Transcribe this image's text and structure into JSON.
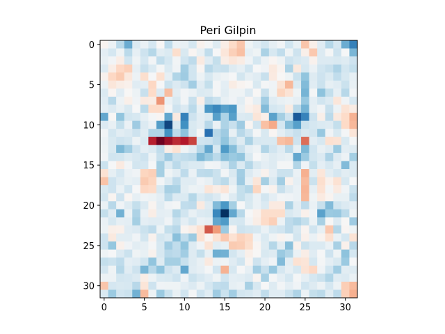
{
  "chart_data": {
    "type": "heatmap",
    "title": "Peri Gilpin",
    "colormap": "RdBu_r",
    "colors": {
      "low": "#053061",
      "mid": "#f7f7f7",
      "high": "#67001f"
    },
    "vmin": -1,
    "vmax": 1,
    "xlim": [
      -0.5,
      31.5
    ],
    "ylim": [
      31.5,
      -0.5
    ],
    "xticks": [
      0,
      5,
      10,
      15,
      20,
      25,
      30
    ],
    "yticks": [
      0,
      5,
      10,
      15,
      20,
      25,
      30
    ],
    "grid": false,
    "values": [
      [
        0.03,
        -0.06,
        -0.27,
        -0.5,
        -0.14,
        -0.07,
        -0.18,
        0.01,
        -0.26,
        -0.07,
        -0.08,
        -0.18,
        0.04,
        -0.02,
        -0.13,
        0.07,
        0.19,
        0.28,
        -0.05,
        -0.12,
        -0.19,
        -0.09,
        -0.03,
        -0.2,
        -0.08,
        0.28,
        0.06,
        -0.12,
        -0.29,
        -0.18,
        -0.5,
        -0.68
      ],
      [
        -0.1,
        -0.18,
        -0.05,
        -0.27,
        -0.09,
        -0.21,
        -0.29,
        -0.11,
        -0.15,
        0.17,
        -0.16,
        0.02,
        -0.08,
        -0.25,
        -0.01,
        0.12,
        0.24,
        0.3,
        -0.09,
        -0.05,
        -0.32,
        -0.17,
        -0.25,
        -0.05,
        -0.21,
        0.06,
        0.27,
        -0.14,
        -0.02,
        -0.21,
        -0.01,
        -0.46
      ],
      [
        -0.08,
        -0.03,
        0.07,
        -0.2,
        -0.05,
        -0.18,
        -0.03,
        -0.25,
        -0.18,
        -0.03,
        -0.2,
        -0.26,
        0.09,
        -0.12,
        -0.24,
        0.07,
        0.12,
        0.08,
        -0.04,
        -0.18,
        -0.06,
        0.02,
        -0.05,
        -0.21,
        -0.17,
        -0.14,
        0.04,
        -0.14,
        -0.14,
        -0.16,
        -0.13,
        -0.21
      ],
      [
        -0.14,
        0.07,
        0.21,
        0.24,
        -0.09,
        -0.23,
        -0.15,
        -0.02,
        -0.15,
        -0.04,
        -0.35,
        -0.2,
        0.02,
        -0.28,
        -0.22,
        -0.23,
        -0.13,
        -0.09,
        -0.2,
        -0.01,
        -0.04,
        0.1,
        0.03,
        -0.32,
        0.1,
        -0.17,
        -0.07,
        -0.2,
        -0.23,
        -0.31,
        -0.19,
        -0.24
      ],
      [
        0.04,
        0.21,
        0.26,
        0.11,
        -0.06,
        0.17,
        -0.01,
        0.16,
        -0.09,
        -0.3,
        -0.36,
        -0.2,
        -0.06,
        -0.17,
        -0.08,
        -0.05,
        -0.01,
        -0.19,
        -0.09,
        -0.12,
        -0.23,
        0.09,
        0.01,
        -0.05,
        -0.22,
        -0.4,
        -0.13,
        -0.21,
        -0.15,
        -0.25,
        -0.17,
        -0.09
      ],
      [
        -0.06,
        0.12,
        0.07,
        0.05,
        -0.12,
        -0.1,
        0.21,
        -0.01,
        -0.22,
        -0.14,
        -0.21,
        -0.35,
        -0.12,
        -0.24,
        -0.02,
        -0.1,
        0.08,
        0.03,
        0.01,
        -0.16,
        -0.02,
        -0.04,
        0.14,
        0.33,
        -0.15,
        -0.44,
        -0.12,
        -0.22,
        -0.09,
        -0.12,
        -0.22,
        -0.08
      ],
      [
        -0.15,
        0.02,
        -0.12,
        0.01,
        -0.06,
        -0.23,
        0.19,
        -0.14,
        0.31,
        -0.11,
        -0.03,
        -0.07,
        -0.15,
        -0.13,
        -0.02,
        -0.11,
        -0.05,
        -0.05,
        -0.14,
        0.01,
        -0.23,
        -0.05,
        0.22,
        0.14,
        -0.05,
        -0.47,
        -0.02,
        -0.41,
        -0.24,
        -0.09,
        -0.28,
        -0.03
      ],
      [
        -0.12,
        -0.28,
        -0.06,
        0.06,
        -0.04,
        0.09,
        0.08,
        0.45,
        -0.07,
        -0.16,
        -0.03,
        -0.23,
        0.06,
        -0.26,
        -0.22,
        -0.08,
        -0.04,
        -0.11,
        0.02,
        -0.09,
        -0.35,
        -0.12,
        -0.08,
        -0.06,
        -0.09,
        -0.38,
        -0.1,
        -0.2,
        -0.14,
        0.12,
        -0.04,
        -0.17
      ],
      [
        -0.1,
        -0.14,
        -0.08,
        -0.16,
        -0.01,
        -0.27,
        0.19,
        0.19,
        -0.02,
        -0.21,
        -0.14,
        -0.27,
        -0.08,
        -0.58,
        -0.65,
        -0.55,
        -0.58,
        -0.08,
        0.05,
        0.09,
        -0.44,
        -0.18,
        -0.15,
        0.08,
        -0.28,
        -0.47,
        -0.09,
        -0.03,
        -0.23,
        -0.06,
        0.14,
        0.08
      ],
      [
        -0.52,
        0.01,
        -0.4,
        -0.19,
        -0.17,
        -0.09,
        -0.02,
        0.02,
        -0.52,
        0.09,
        -0.68,
        -0.21,
        -0.11,
        -0.16,
        -0.55,
        -0.31,
        -0.55,
        -0.14,
        -0.16,
        0.13,
        0.06,
        -0.54,
        -0.34,
        -0.21,
        -0.85,
        -0.67,
        -0.21,
        0.06,
        -0.27,
        0.1,
        0.19,
        0.35
      ],
      [
        -0.14,
        -0.08,
        -0.24,
        -0.07,
        -0.36,
        -0.14,
        -0.07,
        -0.56,
        -0.92,
        -0.17,
        -0.61,
        -0.16,
        -0.11,
        -0.28,
        -0.07,
        -0.31,
        -0.23,
        -0.36,
        0.02,
        -0.2,
        0.3,
        0.38,
        -0.18,
        -0.43,
        -0.55,
        -0.22,
        -0.18,
        -0.15,
        -0.13,
        -0.24,
        0.2,
        0.33
      ],
      [
        -0.03,
        -0.19,
        -0.11,
        -0.14,
        -0.21,
        -0.12,
        -0.3,
        -0.3,
        -0.6,
        -0.26,
        -0.41,
        -0.17,
        -0.02,
        -0.75,
        -0.28,
        -0.36,
        -0.08,
        -0.28,
        -0.2,
        -0.02,
        -0.16,
        0.02,
        -0.1,
        -0.18,
        -0.23,
        -0.16,
        -0.19,
        -0.38,
        -0.04,
        -0.16,
        -0.02,
        0.13
      ],
      [
        -0.06,
        -0.16,
        -0.21,
        -0.19,
        -0.06,
        -0.15,
        0.78,
        0.98,
        0.86,
        0.75,
        0.8,
        0.68,
        -0.2,
        -0.21,
        -0.26,
        -0.4,
        -0.24,
        -0.13,
        -0.32,
        -0.17,
        -0.16,
        -0.16,
        0.3,
        0.33,
        -0.21,
        0.56,
        -0.11,
        -0.17,
        0.16,
        0.14,
        -0.16,
        -0.02
      ],
      [
        -0.05,
        -0.16,
        -0.45,
        -0.35,
        -0.21,
        -0.1,
        -0.14,
        -0.25,
        0.07,
        0.15,
        -0.05,
        -0.12,
        -0.29,
        -0.52,
        -0.17,
        -0.57,
        -0.43,
        -0.23,
        -0.1,
        -0.06,
        -0.3,
        -0.2,
        -0.12,
        -0.27,
        -0.09,
        -0.45,
        -0.2,
        -0.08,
        -0.13,
        -0.37,
        -0.11,
        -0.13
      ],
      [
        -0.03,
        -0.2,
        -0.19,
        -0.13,
        -0.17,
        -0.21,
        -0.06,
        -0.23,
        -0.36,
        -0.23,
        -0.25,
        -0.27,
        -0.45,
        -0.37,
        -0.27,
        -0.42,
        -0.37,
        -0.4,
        -0.16,
        -0.01,
        -0.08,
        -0.13,
        -0.1,
        -0.08,
        -0.52,
        -0.37,
        -0.19,
        -0.14,
        -0.31,
        -0.13,
        -0.06,
        -0.34
      ],
      [
        -0.22,
        -0.01,
        0.09,
        -0.03,
        -0.19,
        -0.18,
        -0.01,
        -0.34,
        -0.15,
        -0.27,
        -0.19,
        -0.15,
        -0.14,
        -0.03,
        -0.04,
        -0.15,
        -0.31,
        -0.15,
        -0.29,
        -0.16,
        -0.1,
        -0.13,
        -0.02,
        -0.02,
        -0.3,
        -0.04,
        -0.24,
        -0.1,
        -0.17,
        -0.09,
        -0.44,
        -0.15
      ],
      [
        0.15,
        -0.09,
        -0.18,
        -0.07,
        -0.04,
        0.22,
        0.24,
        -0.34,
        -0.05,
        -0.11,
        -0.26,
        -0.07,
        -0.26,
        -0.27,
        -0.22,
        -0.03,
        -0.16,
        -0.35,
        -0.14,
        -0.07,
        0.04,
        -0.1,
        -0.22,
        -0.22,
        -0.07,
        0.36,
        -0.11,
        0.12,
        -0.11,
        -0.18,
        -0.11,
        -0.14
      ],
      [
        0.29,
        -0.21,
        -0.13,
        -0.08,
        -0.1,
        0.26,
        0.22,
        -0.03,
        -0.13,
        -0.26,
        -0.12,
        -0.12,
        -0.04,
        -0.08,
        -0.22,
        -0.27,
        -0.11,
        -0.36,
        -0.09,
        0.13,
        -0.34,
        -0.14,
        -0.35,
        0.04,
        -0.09,
        0.32,
        -0.22,
        0.17,
        0.05,
        0.15,
        -0.17,
        -0.01
      ],
      [
        -0.16,
        -0.21,
        -0.07,
        -0.2,
        -0.01,
        0.21,
        0.19,
        -0.16,
        -0.33,
        -0.32,
        -0.11,
        -0.06,
        -0.07,
        0.13,
        0.07,
        0.13,
        -0.05,
        -0.24,
        -0.29,
        0.22,
        -0.02,
        0.04,
        -0.23,
        -0.13,
        -0.07,
        0.34,
        -0.09,
        0.15,
        -0.03,
        0.09,
        -0.04,
        -0.22
      ],
      [
        -0.19,
        0.03,
        -0.21,
        0.02,
        -0.09,
        -0.04,
        -0.06,
        -0.1,
        -0.27,
        -0.14,
        -0.15,
        -0.29,
        -0.15,
        -0.2,
        -0.14,
        -0.03,
        -0.13,
        -0.24,
        -0.17,
        -0.07,
        -0.19,
        -0.1,
        -0.03,
        -0.04,
        -0.07,
        0.33,
        -0.05,
        0.09,
        0.03,
        -0.08,
        -0.08,
        -0.26
      ],
      [
        -0.07,
        -0.28,
        -0.04,
        -0.13,
        -0.24,
        -0.14,
        0.03,
        -0.12,
        -0.04,
        -0.02,
        -0.25,
        -0.26,
        0.09,
        -0.13,
        -0.44,
        -0.58,
        -0.34,
        -0.01,
        -0.16,
        -0.07,
        -0.15,
        0.09,
        0.09,
        -0.32,
        -0.11,
        -0.26,
        -0.07,
        -0.23,
        -0.44,
        -0.2,
        -0.14,
        -0.1
      ],
      [
        -0.24,
        -0.12,
        -0.48,
        -0.06,
        -0.31,
        -0.07,
        0.07,
        -0.1,
        -0.09,
        -0.29,
        -0.2,
        -0.08,
        -0.14,
        -0.16,
        -0.65,
        -1.0,
        -0.52,
        -0.28,
        -0.01,
        0.05,
        0.18,
        0.18,
        0.18,
        -0.16,
        -0.11,
        0.05,
        -0.04,
        -0.54,
        -0.37,
        -0.38,
        -0.27,
        -0.05
      ],
      [
        -0.07,
        -0.17,
        -0.09,
        -0.1,
        -0.34,
        -0.1,
        -0.12,
        -0.12,
        -0.04,
        -0.22,
        -0.1,
        -0.19,
        -0.07,
        -0.09,
        -0.52,
        -0.57,
        -0.17,
        -0.18,
        -0.04,
        0.07,
        0.19,
        0.24,
        -0.06,
        -0.26,
        -0.3,
        -0.24,
        -0.06,
        -0.33,
        0.01,
        -0.14,
        0.01,
        -0.36
      ],
      [
        -0.06,
        0.06,
        0.05,
        -0.12,
        -0.14,
        -0.22,
        -0.26,
        -0.06,
        -0.24,
        -0.28,
        0.03,
        0.07,
        0.16,
        0.62,
        0.43,
        -0.37,
        0.02,
        -0.21,
        -0.19,
        -0.17,
        -0.07,
        -0.17,
        -0.2,
        -0.26,
        -0.17,
        0.03,
        -0.2,
        -0.08,
        0.27,
        -0.29,
        0.02,
        -0.05
      ],
      [
        -0.21,
        0.1,
        -0.11,
        -0.11,
        -0.04,
        -0.19,
        0.04,
        -0.19,
        -0.15,
        -0.42,
        -0.25,
        -0.37,
        0.16,
        0.02,
        0.15,
        0.27,
        0.15,
        0.23,
        0.2,
        -0.04,
        -0.15,
        -0.05,
        0.03,
        -0.02,
        -0.19,
        0.05,
        -0.07,
        0.03,
        0.16,
        -0.07,
        -0.18,
        0.14
      ],
      [
        -0.21,
        -0.39,
        0.05,
        -0.04,
        -0.11,
        -0.09,
        -0.02,
        -0.17,
        -0.35,
        -0.25,
        -0.4,
        -0.13,
        -0.04,
        0.14,
        -0.11,
        -0.08,
        0.26,
        0.25,
        0.18,
        0.02,
        -0.13,
        -0.29,
        -0.11,
        -0.42,
        0.04,
        -0.22,
        -0.15,
        -0.15,
        -0.07,
        -0.33,
        0.05,
        -0.28
      ],
      [
        -0.05,
        -0.01,
        -0.14,
        -0.22,
        -0.05,
        -0.08,
        0.04,
        -0.17,
        -0.28,
        -0.26,
        -0.35,
        -0.13,
        -0.24,
        -0.08,
        -0.49,
        -0.48,
        -0.19,
        -0.1,
        0.06,
        0.01,
        -0.16,
        -0.13,
        -0.37,
        -0.3,
        -0.07,
        0.07,
        -0.12,
        -0.01,
        -0.21,
        -0.05,
        -0.41,
        -0.18
      ],
      [
        -0.24,
        -0.22,
        -0.26,
        -0.1,
        -0.12,
        -0.2,
        -0.4,
        -0.13,
        -0.34,
        -0.34,
        -0.23,
        -0.13,
        -0.08,
        0.1,
        -0.06,
        -0.05,
        -0.12,
        -0.2,
        0.03,
        -0.21,
        -0.1,
        -0.04,
        -0.44,
        -0.11,
        0.15,
        0.13,
        -0.18,
        -0.02,
        -0.1,
        -0.16,
        -0.37,
        -0.01
      ],
      [
        -0.19,
        -0.05,
        -0.29,
        -0.12,
        -0.21,
        -0.46,
        -0.28,
        -0.41,
        -0.21,
        -0.14,
        -0.52,
        -0.12,
        -0.09,
        -0.02,
        -0.2,
        0.35,
        -0.17,
        -0.01,
        -0.09,
        -0.35,
        -0.23,
        -0.38,
        -0.18,
        -0.09,
        -0.17,
        0.14,
        0.21,
        -0.04,
        -0.2,
        -0.35,
        -0.11,
        -0.13
      ],
      [
        -0.06,
        -0.06,
        -0.19,
        -0.18,
        -0.14,
        0.07,
        -0.06,
        -0.15,
        -0.16,
        -0.21,
        -0.04,
        -0.22,
        -0.17,
        -0.12,
        -0.05,
        -0.2,
        -0.1,
        -0.11,
        -0.14,
        0.03,
        -0.33,
        -0.02,
        -0.1,
        -0.18,
        -0.02,
        -0.09,
        -0.18,
        -0.22,
        -0.3,
        -0.12,
        -0.14,
        -0.07
      ],
      [
        0.28,
        -0.18,
        -0.16,
        -0.17,
        -0.28,
        0.13,
        -0.21,
        -0.04,
        -0.05,
        -0.05,
        -0.1,
        -0.14,
        -0.06,
        -0.18,
        -0.25,
        -0.26,
        -0.09,
        -0.07,
        -0.33,
        -0.17,
        -0.01,
        -0.13,
        -0.03,
        -0.1,
        -0.04,
        -0.2,
        -0.13,
        -0.06,
        -0.18,
        -0.06,
        0.25,
        0.32
      ],
      [
        -0.16,
        -0.37,
        -0.2,
        -0.22,
        -0.48,
        0.32,
        -0.06,
        -0.37,
        -0.22,
        -0.08,
        -0.2,
        -0.02,
        -0.21,
        -0.12,
        -0.36,
        -0.22,
        -0.35,
        -0.19,
        -0.17,
        -0.12,
        -0.25,
        -0.12,
        -0.12,
        -0.22,
        -0.31,
        -0.06,
        -0.24,
        -0.27,
        -0.12,
        -0.26,
        0.24,
        0.36
      ]
    ]
  }
}
